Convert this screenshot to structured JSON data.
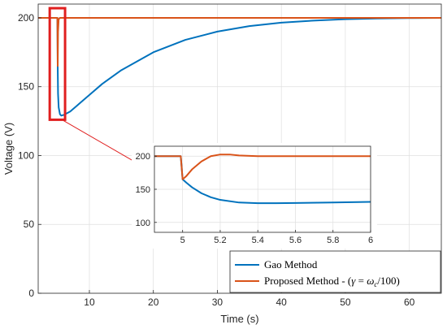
{
  "chart_data": {
    "type": "line",
    "main": {
      "xlabel": "Time (s)",
      "ylabel": "Voltage (V)",
      "xlim": [
        2,
        65
      ],
      "ylim": [
        0,
        210
      ],
      "xticks": [
        10,
        20,
        30,
        40,
        50,
        60
      ],
      "yticks": [
        0,
        50,
        100,
        150,
        200
      ],
      "grid": true,
      "legend_position": "bottom-right",
      "series": [
        {
          "name": "Gao Method",
          "color": "#0072BD",
          "x": [
            4.8,
            5.0,
            5.05,
            5.1,
            5.2,
            5.4,
            5.6,
            6.0,
            7,
            8,
            10,
            12,
            15,
            20,
            25,
            30,
            35,
            40,
            45,
            50,
            55,
            60,
            65
          ],
          "y": [
            200,
            200,
            165,
            145,
            135,
            130,
            129,
            129.5,
            132,
            136,
            144,
            152,
            162,
            175,
            184,
            190,
            194,
            196.5,
            198,
            199,
            199.5,
            199.8,
            200
          ]
        },
        {
          "name": "Proposed Method - (γ = ω_c/100)",
          "color": "#D95319",
          "x": [
            2,
            4.8,
            5.0,
            5.05,
            5.1,
            5.2,
            5.4,
            6.0,
            65
          ],
          "y": [
            200,
            200,
            200,
            165,
            190,
            199,
            200,
            200,
            200
          ]
        }
      ]
    },
    "inset": {
      "xlim": [
        4.85,
        6
      ],
      "ylim": [
        85,
        215
      ],
      "xticks": [
        5,
        5.2,
        5.4,
        5.6,
        5.8,
        6
      ],
      "yticks": [
        100,
        150,
        200
      ],
      "grid": true,
      "series": [
        {
          "name": "Gao Method",
          "color": "#0072BD",
          "x": [
            4.85,
            4.99,
            5.0,
            5.02,
            5.05,
            5.1,
            5.15,
            5.2,
            5.3,
            5.4,
            5.5,
            5.6,
            5.8,
            6.0
          ],
          "y": [
            200,
            200,
            165,
            160,
            153,
            144,
            138,
            134,
            130,
            129,
            129,
            129.3,
            130,
            131
          ]
        },
        {
          "name": "Proposed Method - (γ = ω_c/100)",
          "color": "#D95319",
          "x": [
            4.85,
            4.99,
            5.0,
            5.02,
            5.05,
            5.1,
            5.15,
            5.2,
            5.25,
            5.3,
            5.4,
            5.5,
            6.0
          ],
          "y": [
            200,
            200,
            165,
            170,
            180,
            192,
            200,
            202.5,
            202.5,
            201,
            200,
            200,
            200
          ]
        }
      ]
    }
  },
  "legend": {
    "gao_label": "Gao Method",
    "proposed_prefix": "Proposed Method - (",
    "proposed_math_gamma": "γ",
    "proposed_math_eq": " = ",
    "proposed_math_omega": "ω",
    "proposed_math_sub": "c",
    "proposed_math_tail": "/100)"
  },
  "colors": {
    "gao": "#0072BD",
    "proposed": "#D95319",
    "highlight_box": "#E01F1F",
    "arrow": "#E01F1F"
  }
}
